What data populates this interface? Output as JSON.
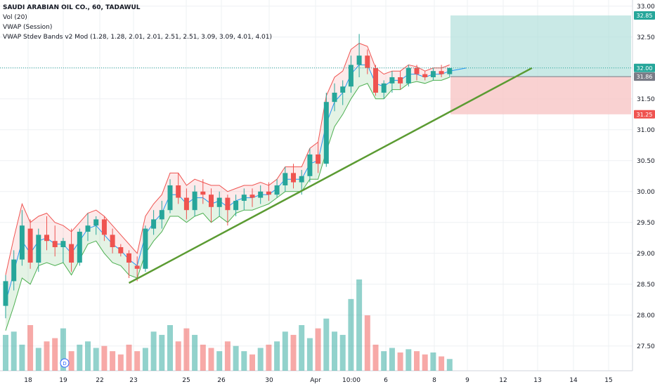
{
  "legend": {
    "symbol": "SAUDI ARABIAN OIL CO., 60, TADAWUL",
    "vol": "Vol (20)",
    "vwap": "VWAP (Session)",
    "bands": "VWAP Stdev Bands v2 Mod (1.28, 1.28, 2.01, 2.01, 2.51, 2.51, 3.09, 3.09, 4.01, 4.01)"
  },
  "colors": {
    "up": "#26a69a",
    "down": "#ef5350",
    "vwap_line": "#2196f3",
    "upper_band": "#ef5350",
    "lower_band": "#4caf50",
    "trendline": "#5b9b32",
    "target_zone": "#b2dfdb",
    "stop_zone": "#f8c6c6",
    "price_line": "#26a69a",
    "grid": "#eef0f3",
    "axis_text": "#131722"
  },
  "chart_data": {
    "type": "candlestick",
    "y_ticks": [
      "27.50",
      "28.00",
      "28.50",
      "29.00",
      "29.50",
      "30.00",
      "30.50",
      "31.00",
      "31.50",
      "32.00",
      "32.50",
      "33.00"
    ],
    "ylim": [
      27.1,
      33.1
    ],
    "x_ticks": [
      "18",
      "19",
      "22",
      "23",
      "25",
      "26",
      "30",
      "Apr",
      "10:00",
      "6",
      "8",
      "9",
      "12",
      "13",
      "14",
      "15"
    ],
    "price_badges": [
      {
        "value": 32.85,
        "label": "32.85",
        "color": "#26a69a"
      },
      {
        "value": 32.0,
        "label": "32.00",
        "color": "#26a69a"
      },
      {
        "value": 31.86,
        "label": "31.86",
        "color": "#787b86"
      },
      {
        "value": 31.25,
        "label": "31.25",
        "color": "#ef5350"
      }
    ],
    "position": {
      "entry": 31.86,
      "target": 32.85,
      "stop": 31.25
    },
    "trendline": {
      "from_bar": 15,
      "from": 28.52,
      "to_bar": 59,
      "to": 32.0
    },
    "last_price": 32.0,
    "ohlc": [
      [
        28.15,
        28.65,
        27.95,
        28.55
      ],
      [
        28.55,
        29.05,
        28.4,
        28.9
      ],
      [
        28.9,
        29.7,
        28.8,
        29.45
      ],
      [
        29.4,
        29.55,
        28.75,
        28.85
      ],
      [
        28.85,
        29.4,
        28.7,
        29.3
      ],
      [
        29.3,
        29.6,
        29.05,
        29.2
      ],
      [
        29.2,
        29.45,
        28.95,
        29.1
      ],
      [
        29.1,
        29.25,
        28.85,
        29.2
      ],
      [
        29.15,
        29.4,
        28.7,
        28.85
      ],
      [
        28.85,
        29.4,
        28.8,
        29.35
      ],
      [
        29.35,
        29.65,
        29.2,
        29.45
      ],
      [
        29.45,
        29.6,
        29.3,
        29.55
      ],
      [
        29.55,
        29.6,
        29.2,
        29.3
      ],
      [
        29.3,
        29.4,
        29.0,
        29.1
      ],
      [
        29.1,
        29.15,
        28.95,
        29.0
      ],
      [
        29.0,
        29.05,
        28.6,
        28.85
      ],
      [
        28.8,
        28.95,
        28.55,
        28.75
      ],
      [
        28.75,
        29.45,
        28.7,
        29.4
      ],
      [
        29.4,
        29.7,
        29.3,
        29.55
      ],
      [
        29.55,
        29.85,
        29.4,
        29.7
      ],
      [
        29.7,
        30.2,
        29.65,
        30.1
      ],
      [
        30.1,
        30.3,
        29.8,
        29.9
      ],
      [
        29.9,
        30.05,
        29.55,
        29.7
      ],
      [
        29.7,
        30.1,
        29.6,
        30.0
      ],
      [
        30.0,
        30.2,
        29.8,
        29.95
      ],
      [
        29.95,
        30.05,
        29.5,
        29.75
      ],
      [
        29.75,
        30.0,
        29.6,
        29.9
      ],
      [
        29.9,
        29.95,
        29.45,
        29.7
      ],
      [
        29.7,
        29.95,
        29.6,
        29.85
      ],
      [
        29.85,
        30.05,
        29.7,
        29.95
      ],
      [
        29.95,
        30.05,
        29.75,
        29.9
      ],
      [
        29.9,
        30.1,
        29.8,
        30.0
      ],
      [
        30.0,
        30.15,
        29.85,
        29.95
      ],
      [
        29.95,
        30.2,
        29.9,
        30.1
      ],
      [
        30.1,
        30.4,
        30.0,
        30.3
      ],
      [
        30.3,
        30.45,
        30.05,
        30.15
      ],
      [
        30.15,
        30.35,
        29.95,
        30.25
      ],
      [
        30.25,
        30.7,
        30.15,
        30.6
      ],
      [
        30.6,
        30.8,
        30.3,
        30.45
      ],
      [
        30.45,
        31.6,
        30.4,
        31.45
      ],
      [
        31.45,
        31.75,
        31.3,
        31.6
      ],
      [
        31.6,
        31.8,
        31.4,
        31.7
      ],
      [
        31.7,
        32.2,
        31.6,
        32.05
      ],
      [
        32.05,
        32.55,
        31.85,
        32.2
      ],
      [
        32.2,
        32.3,
        31.9,
        32.0
      ],
      [
        32.0,
        32.05,
        31.55,
        31.6
      ],
      [
        31.6,
        31.8,
        31.5,
        31.75
      ],
      [
        31.75,
        31.95,
        31.6,
        31.85
      ],
      [
        31.85,
        31.95,
        31.65,
        31.75
      ],
      [
        31.75,
        32.05,
        31.7,
        32.0
      ],
      [
        32.0,
        32.05,
        31.8,
        31.9
      ],
      [
        31.9,
        31.95,
        31.8,
        31.85
      ],
      [
        31.85,
        32.0,
        31.8,
        31.95
      ],
      [
        31.95,
        32.05,
        31.85,
        31.9
      ],
      [
        31.9,
        32.0,
        31.85,
        32.0
      ]
    ],
    "vwap": [
      28.2,
      28.7,
      29.2,
      29.0,
      29.2,
      29.25,
      29.15,
      29.15,
      29.0,
      29.2,
      29.4,
      29.45,
      29.3,
      29.15,
      29.05,
      28.9,
      28.8,
      29.3,
      29.5,
      29.65,
      29.95,
      29.95,
      29.8,
      29.9,
      29.9,
      29.8,
      29.85,
      29.75,
      29.85,
      29.9,
      29.9,
      29.95,
      29.95,
      30.05,
      30.2,
      30.2,
      30.2,
      30.45,
      30.5,
      31.1,
      31.45,
      31.6,
      31.9,
      32.05,
      32.05,
      31.75,
      31.7,
      31.8,
      31.8,
      31.9,
      31.9,
      31.85,
      31.9,
      31.9,
      31.95
    ],
    "band_width": [
      0.45,
      0.55,
      0.6,
      0.5,
      0.4,
      0.4,
      0.35,
      0.3,
      0.35,
      0.3,
      0.25,
      0.25,
      0.3,
      0.3,
      0.25,
      0.25,
      0.2,
      0.3,
      0.3,
      0.3,
      0.35,
      0.35,
      0.3,
      0.3,
      0.25,
      0.3,
      0.25,
      0.25,
      0.2,
      0.2,
      0.2,
      0.2,
      0.15,
      0.15,
      0.2,
      0.2,
      0.2,
      0.25,
      0.3,
      0.45,
      0.4,
      0.35,
      0.4,
      0.35,
      0.3,
      0.25,
      0.2,
      0.15,
      0.15,
      0.15,
      0.12,
      0.1,
      0.1,
      0.1,
      0.1
    ],
    "volume": [
      55,
      60,
      40,
      70,
      35,
      45,
      50,
      65,
      30,
      40,
      45,
      35,
      38,
      30,
      25,
      40,
      30,
      35,
      60,
      55,
      70,
      45,
      65,
      55,
      40,
      35,
      30,
      45,
      38,
      30,
      25,
      35,
      40,
      45,
      60,
      55,
      70,
      50,
      65,
      80,
      60,
      55,
      110,
      140,
      85,
      40,
      30,
      35,
      28,
      33,
      30,
      25,
      28,
      22,
      18
    ]
  }
}
